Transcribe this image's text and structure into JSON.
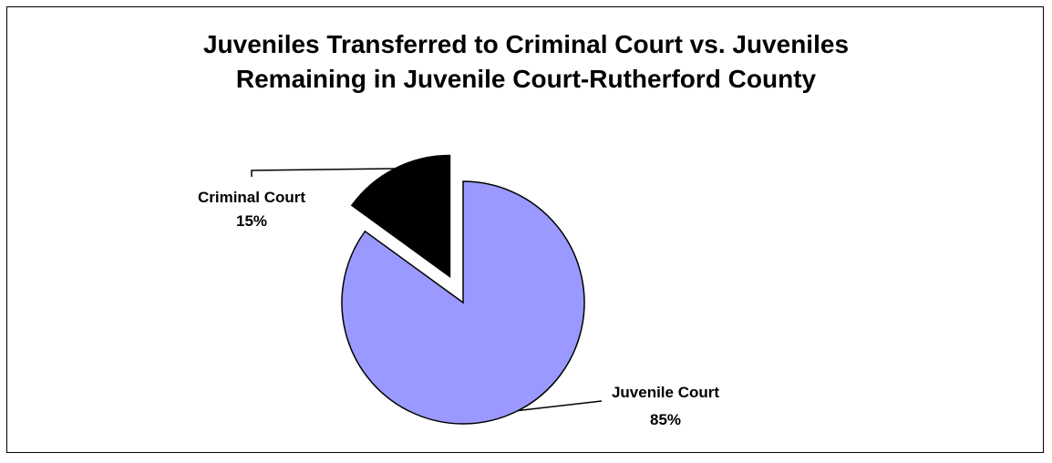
{
  "chart_data": {
    "type": "pie",
    "title_lines": [
      "Juveniles Transferred to Criminal Court vs. Juveniles",
      "Remaining in Juvenile Court-Rutherford County"
    ],
    "slices": [
      {
        "label": "Criminal Court",
        "value": 15,
        "value_label": "15%",
        "color": "#000000",
        "exploded": true
      },
      {
        "label": "Juvenile Court",
        "value": 85,
        "value_label": "85%",
        "color": "#9999ff",
        "exploded": false
      }
    ],
    "legend": "none",
    "data_labels": "category and percent, with leader lines"
  }
}
